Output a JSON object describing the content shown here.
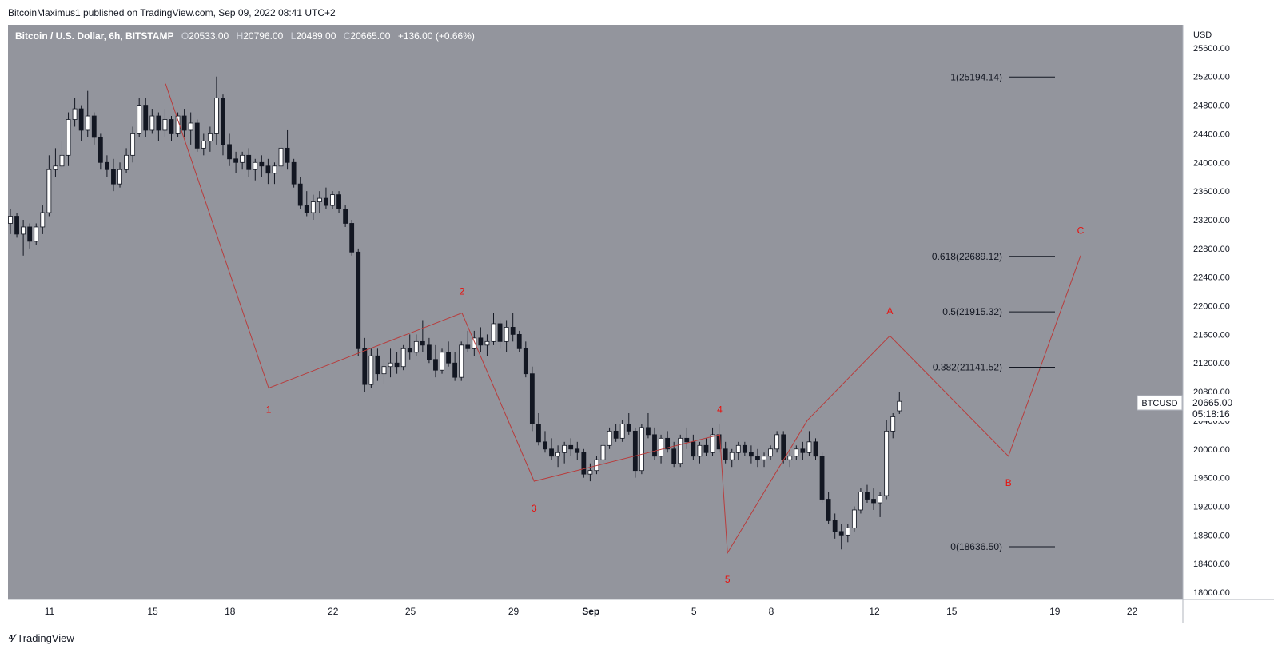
{
  "publisher": "BitcoinMaximus1 published on TradingView.com, Sep 09, 2022 08:41 UTC+2",
  "legend": {
    "symbol": "Bitcoin / U.S. Dollar, 6h, BITSTAMP",
    "open_key": "O",
    "open": "20533.00",
    "high_key": "H",
    "high": "20796.00",
    "low_key": "L",
    "low": "20489.00",
    "close_key": "C",
    "close": "20665.00",
    "change": "+136.00 (+0.66%)"
  },
  "price_axis": {
    "currency": "USD"
  },
  "price_tag": {
    "symbol": "BTCUSD",
    "price": "20665.00",
    "countdown": "05:18:16"
  },
  "footer": {
    "brand": "TradingView"
  },
  "colors": {
    "plot_bg": "#93959d",
    "wave": "#b83c3c",
    "label": "#e8110e",
    "up": "#ffffff",
    "down": "#131722"
  },
  "chart_data": {
    "type": "candlestick",
    "ylim": [
      17900,
      25900
    ],
    "yticks": [
      18000,
      18400,
      18800,
      19200,
      19600,
      20000,
      20400,
      20800,
      21200,
      21600,
      22000,
      22400,
      22800,
      23200,
      23600,
      24000,
      24400,
      24800,
      25200,
      25600
    ],
    "xticks": [
      {
        "label": "11",
        "day": 11
      },
      {
        "label": "15",
        "day": 15
      },
      {
        "label": "18",
        "day": 18
      },
      {
        "label": "22",
        "day": 22
      },
      {
        "label": "25",
        "day": 25
      },
      {
        "label": "29",
        "day": 29
      },
      {
        "label": "Sep",
        "day": 32
      },
      {
        "label": "5",
        "day": 36
      },
      {
        "label": "8",
        "day": 39
      },
      {
        "label": "12",
        "day": 43
      },
      {
        "label": "15",
        "day": 46
      },
      {
        "label": "19",
        "day": 50
      },
      {
        "label": "22",
        "day": 53
      }
    ],
    "fib_levels": [
      {
        "label": "1(25194.14)",
        "value": 25194.14
      },
      {
        "label": "0.618(22689.12)",
        "value": 22689.12
      },
      {
        "label": "0.5(21915.32)",
        "value": 21915.32
      },
      {
        "label": "0.382(21141.52)",
        "value": 21141.52
      },
      {
        "label": "0(18636.50)",
        "value": 18636.5
      }
    ],
    "wave_path": [
      {
        "day": 15.5,
        "price": 25100
      },
      {
        "day": 19.5,
        "price": 20850
      },
      {
        "day": 27.0,
        "price": 21900
      },
      {
        "day": 29.8,
        "price": 19550
      },
      {
        "day": 37.0,
        "price": 20200
      },
      {
        "day": 37.3,
        "price": 18550
      },
      {
        "day": 40.4,
        "price": 20400
      },
      {
        "day": 43.6,
        "price": 21580
      },
      {
        "day": 48.2,
        "price": 19900
      },
      {
        "day": 51.0,
        "price": 22700
      }
    ],
    "wave_labels": [
      {
        "text": "1",
        "day": 19.5,
        "price": 20550
      },
      {
        "text": "2",
        "day": 27.0,
        "price": 22200
      },
      {
        "text": "3",
        "day": 29.8,
        "price": 19170
      },
      {
        "text": "4",
        "day": 37.0,
        "price": 20550
      },
      {
        "text": "5",
        "day": 37.3,
        "price": 18180
      },
      {
        "text": "A",
        "day": 43.6,
        "price": 21930
      },
      {
        "text": "B",
        "day": 48.2,
        "price": 19530
      },
      {
        "text": "C",
        "day": 51.0,
        "price": 23050
      }
    ],
    "candles": [
      [
        23150,
        23350,
        23000,
        23250
      ],
      [
        23250,
        23300,
        22950,
        23000
      ],
      [
        23000,
        23200,
        22700,
        23100
      ],
      [
        23100,
        23150,
        22800,
        22900
      ],
      [
        22900,
        23150,
        22850,
        23100
      ],
      [
        23100,
        23400,
        23000,
        23300
      ],
      [
        23300,
        24100,
        23250,
        23900
      ],
      [
        23900,
        24200,
        23800,
        23950
      ],
      [
        23950,
        24300,
        23900,
        24100
      ],
      [
        24100,
        24700,
        23950,
        24600
      ],
      [
        24600,
        24900,
        24500,
        24750
      ],
      [
        24750,
        24800,
        24300,
        24450
      ],
      [
        24450,
        25000,
        24350,
        24650
      ],
      [
        24650,
        24700,
        24250,
        24350
      ],
      [
        24350,
        24400,
        23900,
        24000
      ],
      [
        24000,
        24100,
        23800,
        23900
      ],
      [
        23900,
        24050,
        23600,
        23700
      ],
      [
        23700,
        24000,
        23650,
        23900
      ],
      [
        23900,
        24200,
        23850,
        24100
      ],
      [
        24100,
        24500,
        24000,
        24400
      ],
      [
        24400,
        24900,
        24350,
        24800
      ],
      [
        24800,
        24900,
        24350,
        24450
      ],
      [
        24450,
        24750,
        24400,
        24650
      ],
      [
        24650,
        24700,
        24300,
        24450
      ],
      [
        24450,
        24750,
        24350,
        24600
      ],
      [
        24600,
        24650,
        24300,
        24400
      ],
      [
        24400,
        24700,
        24350,
        24650
      ],
      [
        24650,
        24750,
        24350,
        24450
      ],
      [
        24450,
        24700,
        24250,
        24550
      ],
      [
        24550,
        24600,
        24150,
        24200
      ],
      [
        24200,
        24400,
        24100,
        24300
      ],
      [
        24300,
        24500,
        24150,
        24400
      ],
      [
        24400,
        25200,
        24250,
        24900
      ],
      [
        24900,
        24950,
        24100,
        24250
      ],
      [
        24250,
        24400,
        23950,
        24050
      ],
      [
        24050,
        24150,
        23850,
        24000
      ],
      [
        24000,
        24150,
        23900,
        24100
      ],
      [
        24100,
        24200,
        23800,
        23900
      ],
      [
        23900,
        24050,
        23750,
        24000
      ],
      [
        24000,
        24100,
        23800,
        23950
      ],
      [
        23950,
        24050,
        23700,
        23850
      ],
      [
        23850,
        24000,
        23700,
        23950
      ],
      [
        23950,
        24300,
        23900,
        24200
      ],
      [
        24200,
        24450,
        23900,
        24000
      ],
      [
        24000,
        24050,
        23650,
        23700
      ],
      [
        23700,
        23800,
        23350,
        23400
      ],
      [
        23400,
        23600,
        23250,
        23300
      ],
      [
        23300,
        23550,
        23200,
        23450
      ],
      [
        23450,
        23600,
        23300,
        23500
      ],
      [
        23500,
        23650,
        23350,
        23400
      ],
      [
        23400,
        23600,
        23350,
        23550
      ],
      [
        23550,
        23600,
        23300,
        23350
      ],
      [
        23350,
        23400,
        23100,
        23150
      ],
      [
        23150,
        23200,
        22700,
        22750
      ],
      [
        22750,
        22800,
        21300,
        21400
      ],
      [
        21400,
        21550,
        20800,
        20900
      ],
      [
        20900,
        21400,
        20850,
        21300
      ],
      [
        21300,
        21400,
        20950,
        21050
      ],
      [
        21050,
        21250,
        20900,
        21150
      ],
      [
        21150,
        21400,
        21000,
        21200
      ],
      [
        21200,
        21350,
        21050,
        21150
      ],
      [
        21150,
        21450,
        21100,
        21400
      ],
      [
        21400,
        21600,
        21250,
        21350
      ],
      [
        21350,
        21600,
        21300,
        21500
      ],
      [
        21500,
        21800,
        21350,
        21450
      ],
      [
        21450,
        21550,
        21200,
        21250
      ],
      [
        21250,
        21450,
        21000,
        21100
      ],
      [
        21100,
        21400,
        21050,
        21350
      ],
      [
        21350,
        21500,
        21150,
        21200
      ],
      [
        21200,
        21350,
        20950,
        21000
      ],
      [
        21000,
        21500,
        20950,
        21450
      ],
      [
        21450,
        21650,
        21350,
        21400
      ],
      [
        21400,
        21650,
        21300,
        21550
      ],
      [
        21550,
        21700,
        21350,
        21450
      ],
      [
        21450,
        21600,
        21300,
        21500
      ],
      [
        21500,
        21900,
        21450,
        21750
      ],
      [
        21750,
        21800,
        21400,
        21500
      ],
      [
        21500,
        21800,
        21350,
        21700
      ],
      [
        21700,
        21900,
        21500,
        21600
      ],
      [
        21600,
        21650,
        21350,
        21400
      ],
      [
        21400,
        21500,
        21000,
        21050
      ],
      [
        21050,
        21150,
        20250,
        20350
      ],
      [
        20350,
        20500,
        20050,
        20100
      ],
      [
        20100,
        20250,
        19950,
        20000
      ],
      [
        20000,
        20150,
        19850,
        19900
      ],
      [
        19900,
        20050,
        19750,
        19950
      ],
      [
        19950,
        20100,
        19800,
        20050
      ],
      [
        20050,
        20150,
        19900,
        20000
      ],
      [
        20000,
        20100,
        19850,
        19950
      ],
      [
        19950,
        20000,
        19600,
        19650
      ],
      [
        19650,
        19800,
        19550,
        19700
      ],
      [
        19700,
        19900,
        19650,
        19850
      ],
      [
        19850,
        20100,
        19800,
        20050
      ],
      [
        20050,
        20300,
        20000,
        20250
      ],
      [
        20250,
        20350,
        20100,
        20150
      ],
      [
        20150,
        20400,
        20100,
        20350
      ],
      [
        20350,
        20500,
        20200,
        20250
      ],
      [
        20250,
        20300,
        19600,
        19700
      ],
      [
        19700,
        20350,
        19650,
        20300
      ],
      [
        20300,
        20500,
        20150,
        20200
      ],
      [
        20200,
        20300,
        19850,
        19900
      ],
      [
        19900,
        20200,
        19800,
        20150
      ],
      [
        20150,
        20250,
        19950,
        20000
      ],
      [
        20000,
        20100,
        19750,
        19800
      ],
      [
        19800,
        20200,
        19750,
        20150
      ],
      [
        20150,
        20300,
        20000,
        20100
      ],
      [
        20100,
        20200,
        19850,
        19900
      ],
      [
        19900,
        20100,
        19800,
        20050
      ],
      [
        20050,
        20150,
        19900,
        19950
      ],
      [
        19950,
        20300,
        19900,
        20200
      ],
      [
        20200,
        20350,
        19950,
        20000
      ],
      [
        20000,
        20100,
        19800,
        19850
      ],
      [
        19850,
        20000,
        19750,
        19950
      ],
      [
        19950,
        20100,
        19850,
        20050
      ],
      [
        20050,
        20100,
        19900,
        19950
      ],
      [
        19950,
        20050,
        19800,
        19900
      ],
      [
        19900,
        20000,
        19750,
        19850
      ],
      [
        19850,
        19950,
        19750,
        19900
      ],
      [
        19900,
        20050,
        19850,
        20000
      ],
      [
        20000,
        20250,
        19950,
        20200
      ],
      [
        20200,
        20250,
        19800,
        19850
      ],
      [
        19850,
        19950,
        19750,
        19900
      ],
      [
        19900,
        20050,
        19850,
        20000
      ],
      [
        20000,
        20100,
        19850,
        19950
      ],
      [
        19950,
        20250,
        19900,
        20100
      ],
      [
        20100,
        20150,
        19850,
        19900
      ],
      [
        19900,
        19950,
        19250,
        19300
      ],
      [
        19300,
        19400,
        18950,
        19000
      ],
      [
        19000,
        19100,
        18750,
        18850
      ],
      [
        18850,
        18950,
        18600,
        18800
      ],
      [
        18800,
        18950,
        18700,
        18900
      ],
      [
        18900,
        19200,
        18850,
        19150
      ],
      [
        19150,
        19450,
        19100,
        19400
      ],
      [
        19400,
        19500,
        19250,
        19300
      ],
      [
        19300,
        19450,
        19150,
        19250
      ],
      [
        19250,
        19400,
        19050,
        19350
      ],
      [
        19350,
        20400,
        19300,
        20250
      ],
      [
        20250,
        20500,
        20150,
        20450
      ],
      [
        20533,
        20796,
        20489,
        20665
      ]
    ]
  }
}
